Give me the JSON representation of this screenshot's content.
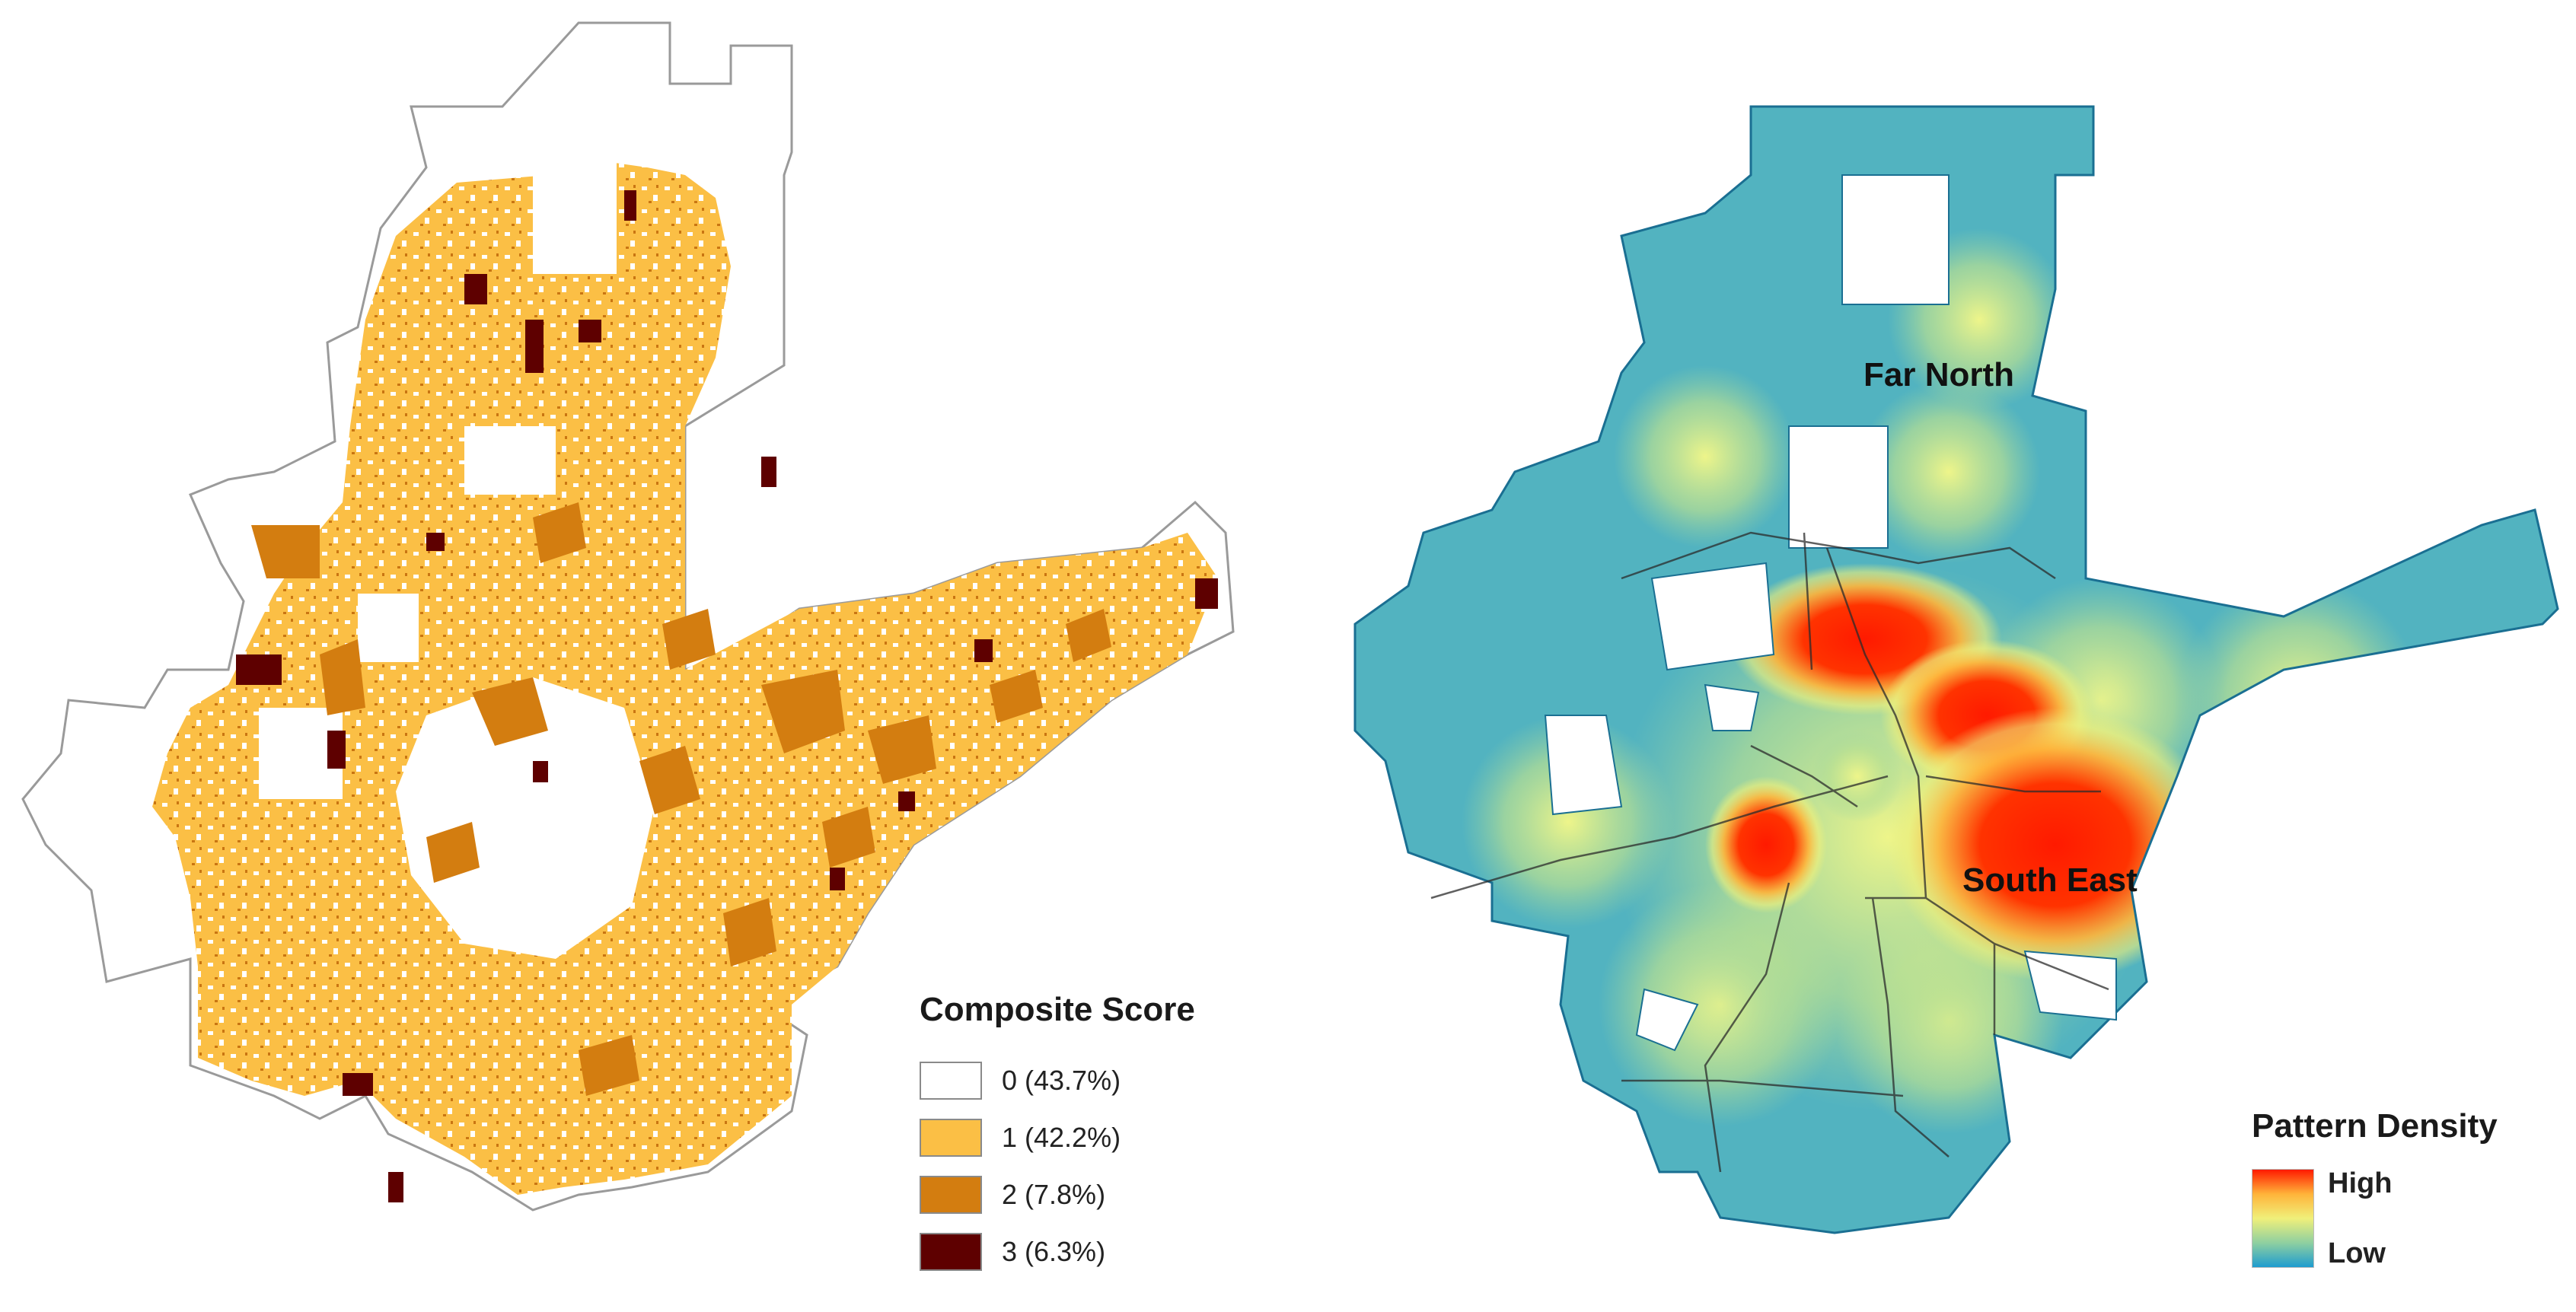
{
  "composite_legend": {
    "title": "Composite Score",
    "items": [
      {
        "label": "0  (43.7%)",
        "color": "#ffffff"
      },
      {
        "label": "1  (42.2%)",
        "color": "#fbbf45"
      },
      {
        "label": "2  (7.8%)",
        "color": "#d37d10"
      },
      {
        "label": "3  (6.3%)",
        "color": "#5e0000"
      }
    ]
  },
  "density_legend": {
    "title": "Pattern Density",
    "high": "High",
    "low": "Low",
    "colors": [
      "#ff1a00",
      "#ffb33a",
      "#f0f07a",
      "#8fd0a0",
      "#1e9ccf"
    ]
  },
  "regions": {
    "far_north": "Far North",
    "south_east": "South East"
  }
}
